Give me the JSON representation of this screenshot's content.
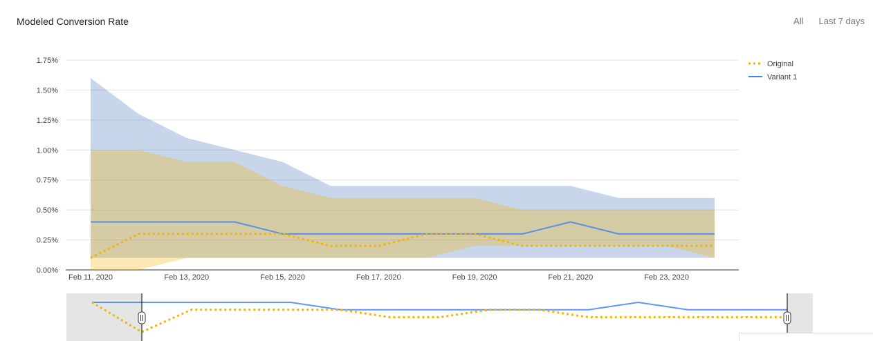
{
  "header": {
    "title": "Modeled Conversion Rate",
    "range_all": "All",
    "range_7d": "Last 7 days"
  },
  "chart_data": {
    "type": "line",
    "title": "Modeled Conversion Rate",
    "xlabel": "",
    "ylabel": "",
    "ylim": [
      0,
      1.75
    ],
    "y_unit": "%",
    "yticks": [
      "0.00%",
      "0.25%",
      "0.50%",
      "0.75%",
      "1.00%",
      "1.25%",
      "1.50%",
      "1.75%"
    ],
    "xticks": [
      "Feb 11, 2020",
      "Feb 13, 2020",
      "Feb 15, 2020",
      "Feb 17, 2020",
      "Feb 19, 2020",
      "Feb 21, 2020",
      "Feb 23, 2020"
    ],
    "x": [
      "2020-02-11",
      "2020-02-12",
      "2020-02-13",
      "2020-02-14",
      "2020-02-15",
      "2020-02-16",
      "2020-02-17",
      "2020-02-18",
      "2020-02-19",
      "2020-02-20",
      "2020-02-21",
      "2020-02-22",
      "2020-02-23",
      "2020-02-24"
    ],
    "grid": true,
    "legend_position": "right",
    "series": [
      {
        "name": "Original",
        "color": "#f4b400",
        "style": "dotted",
        "values": [
          0.1,
          0.3,
          0.3,
          0.3,
          0.3,
          0.2,
          0.2,
          0.3,
          0.3,
          0.2,
          0.2,
          0.2,
          0.2,
          0.2
        ],
        "band_low": [
          0.0,
          0.0,
          0.1,
          0.1,
          0.1,
          0.1,
          0.1,
          0.1,
          0.2,
          0.2,
          0.2,
          0.2,
          0.2,
          0.1
        ],
        "band_high": [
          1.0,
          1.0,
          0.9,
          0.9,
          0.7,
          0.6,
          0.6,
          0.6,
          0.6,
          0.5,
          0.5,
          0.5,
          0.5,
          0.5
        ],
        "band_color": "#f4b400"
      },
      {
        "name": "Variant 1",
        "color": "#4285f4",
        "style": "solid",
        "values": [
          0.4,
          0.4,
          0.4,
          0.4,
          0.3,
          0.3,
          0.3,
          0.3,
          0.3,
          0.3,
          0.4,
          0.3,
          0.3,
          0.3
        ],
        "band_low": [
          0.1,
          0.1,
          0.1,
          0.1,
          0.1,
          0.1,
          0.1,
          0.1,
          0.1,
          0.1,
          0.1,
          0.1,
          0.1,
          0.1
        ],
        "band_high": [
          1.6,
          1.3,
          1.1,
          1.0,
          0.9,
          0.7,
          0.7,
          0.7,
          0.7,
          0.7,
          0.7,
          0.6,
          0.6,
          0.6
        ],
        "band_color": "#4a76c0"
      }
    ],
    "navigator": {
      "original": [
        0.4,
        0.0,
        0.3,
        0.3,
        0.3,
        0.3,
        0.2,
        0.2,
        0.3,
        0.3,
        0.2,
        0.2,
        0.2,
        0.2,
        0.2
      ],
      "variant": [
        0.4,
        0.4,
        0.4,
        0.4,
        0.4,
        0.3,
        0.3,
        0.3,
        0.3,
        0.3,
        0.3,
        0.4,
        0.3,
        0.3,
        0.3
      ]
    }
  }
}
